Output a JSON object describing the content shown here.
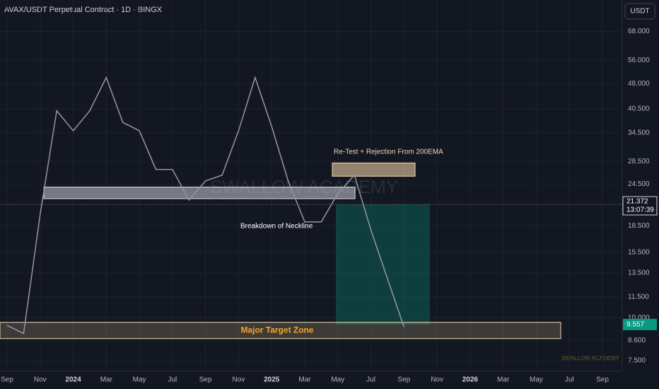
{
  "chart_data": {
    "type": "line",
    "title": "AVAX/USDT Perpetual Contract · 1D · BINGX",
    "currency_button": "USDT",
    "watermark": "SWALLOW ACADEMY",
    "footer_brand": "SWALLOW ACADEMY",
    "log_scale": true,
    "grid": true,
    "color": "#9598a1",
    "categories": [
      "Sep",
      null,
      "Nov",
      null,
      "2024",
      null,
      "Mar",
      null,
      "May",
      null,
      "Jul",
      null,
      "Sep",
      null,
      "Nov",
      null,
      "2025",
      null,
      "Mar",
      null,
      "May",
      null,
      "Jul",
      null,
      "Sep",
      null,
      "Nov",
      null,
      "2026",
      null,
      "Mar",
      null,
      "May",
      null,
      "Jul",
      null,
      "Sep"
    ],
    "values": [
      9.5,
      9,
      20,
      40,
      35,
      40,
      50,
      37,
      35,
      27,
      27,
      22,
      25,
      26,
      35,
      50,
      36,
      25,
      19,
      19,
      23,
      26,
      18,
      13,
      9.4,
      null,
      null,
      null,
      null,
      null,
      null,
      null,
      null,
      null,
      null,
      null,
      null
    ],
    "ylim": [
      6.6,
      84
    ],
    "yticks": [
      {
        "value": 68,
        "label": "68.000"
      },
      {
        "value": 56,
        "label": "56.000"
      },
      {
        "value": 48,
        "label": "48.000"
      },
      {
        "value": 40.5,
        "label": "40.500"
      },
      {
        "value": 34.5,
        "label": "34.500"
      },
      {
        "value": 28.5,
        "label": "28.500"
      },
      {
        "value": 24.5,
        "label": "24.500"
      },
      {
        "value": 18.5,
        "label": "18.500"
      },
      {
        "value": 15.5,
        "label": "15.500"
      },
      {
        "value": 13.5,
        "label": "13.500"
      },
      {
        "value": 11.5,
        "label": "11.500"
      },
      {
        "value": 10,
        "label": "10.000"
      },
      {
        "value": 8.6,
        "label": "8.600"
      },
      {
        "value": 7.5,
        "label": "7.500"
      }
    ],
    "last_price": 21.372,
    "countdown": "13:07:39",
    "target_price": 9.557,
    "zones": [
      {
        "label": "Re-Test + Rejection From 200EMA",
        "ylow": 25.8,
        "yhigh": 28.2
      },
      {
        "label": "Breakdown of Neckline",
        "ylow": 22.2,
        "yhigh": 24
      },
      {
        "label": "Major Target Zone",
        "ylow": 8.7,
        "yhigh": 9.7
      }
    ]
  }
}
